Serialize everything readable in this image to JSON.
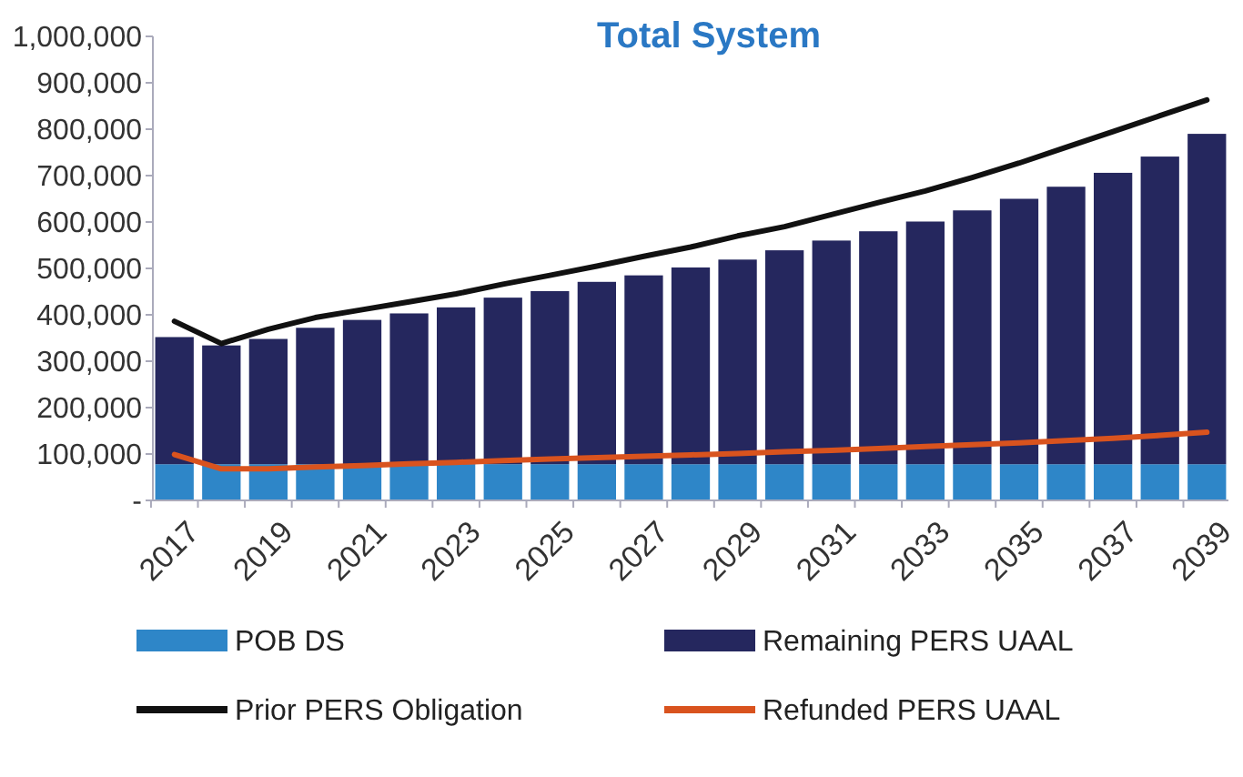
{
  "chart_data": {
    "type": "bar",
    "title": "Total System",
    "stacked": true,
    "categories": [
      "2017",
      null,
      "2019",
      null,
      "2021",
      null,
      "2023",
      null,
      "2025",
      null,
      "2027",
      null,
      "2029",
      null,
      "2031",
      null,
      "2033",
      null,
      "2035",
      null,
      "2037",
      null,
      "2039"
    ],
    "series": [
      {
        "name": "POB DS",
        "color": "#2e86c8",
        "values": [
          78000,
          78000,
          78000,
          78000,
          78000,
          78000,
          78000,
          78000,
          78000,
          78000,
          78000,
          78000,
          78000,
          78000,
          78000,
          78000,
          78000,
          78000,
          78000,
          78000,
          78000,
          78000,
          78000
        ]
      },
      {
        "name": "Remaining PERS UAAL",
        "color": "#25275e",
        "values": [
          274000,
          256000,
          270000,
          294000,
          311000,
          325000,
          338000,
          359000,
          373000,
          393000,
          407000,
          424000,
          441000,
          461000,
          482000,
          502000,
          523000,
          547000,
          572000,
          598000,
          628000,
          663000,
          712000
        ]
      },
      {
        "name": "Prior PERS Obligation",
        "type": "line",
        "color": "#111111",
        "values": [
          386000,
          338000,
          369000,
          394000,
          411000,
          428000,
          445000,
          466000,
          485000,
          505000,
          526000,
          546000,
          570000,
          590000,
          616000,
          642000,
          667000,
          696000,
          727000,
          761000,
          795000,
          829000,
          863000
        ]
      },
      {
        "name": "Refunded PERS UAAL",
        "type": "line",
        "color": "#d9531e",
        "values": [
          99000,
          68000,
          68000,
          72000,
          75000,
          79000,
          82000,
          86000,
          89000,
          92000,
          95000,
          98000,
          101000,
          105000,
          108000,
          112000,
          116000,
          120000,
          124000,
          129000,
          134000,
          140000,
          147000
        ]
      }
    ],
    "ylim": [
      0,
      1000000
    ],
    "yticks": [
      {
        "value": 0,
        "label": "-"
      },
      {
        "value": 100000,
        "label": "100,000"
      },
      {
        "value": 200000,
        "label": "200,000"
      },
      {
        "value": 300000,
        "label": "300,000"
      },
      {
        "value": 400000,
        "label": "400,000"
      },
      {
        "value": 500000,
        "label": "500,000"
      },
      {
        "value": 600000,
        "label": "600,000"
      },
      {
        "value": 700000,
        "label": "700,000"
      },
      {
        "value": 800000,
        "label": "800,000"
      },
      {
        "value": 900000,
        "label": "900,000"
      },
      {
        "value": 1000000,
        "label": "1,000,000"
      }
    ],
    "legend": "bottom",
    "grid": false
  }
}
